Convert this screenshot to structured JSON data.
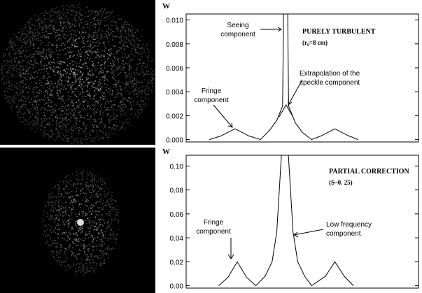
{
  "chart_data": [
    {
      "type": "line",
      "y_label": "W",
      "title": "PURELY TURBULENT",
      "subtitle": "(r₀=8 cm)",
      "annotations": [
        [
          "Seeing",
          "component"
        ],
        [
          "Extrapolation of the",
          "speckle component"
        ],
        [
          "Fringe",
          "component"
        ]
      ],
      "xlim": [
        0,
        1
      ],
      "ylim": [
        -0.0002,
        0.0105
      ],
      "yticks": [
        {
          "value": 0,
          "label": "0.000"
        },
        {
          "value": 0.002,
          "label": "0.002"
        },
        {
          "value": 0.004,
          "label": "0.004"
        },
        {
          "value": 0.006,
          "label": "0.006"
        },
        {
          "value": 0.008,
          "label": "0.008"
        },
        {
          "value": 0.01,
          "label": "0.010"
        }
      ],
      "series": [
        {
          "color": "#000000",
          "x": [
            0.1,
            0.15,
            0.19,
            0.21,
            0.23,
            0.27,
            0.32,
            0.36,
            0.39,
            0.415,
            0.419,
            0.437,
            0.441,
            0.47,
            0.5,
            0.54,
            0.58,
            0.61,
            0.64,
            0.67,
            0.7,
            0.74
          ],
          "values": [
            0,
            0.0003,
            0.0007,
            0.0009,
            0.0007,
            0.0003,
            0,
            0.0008,
            0.0016,
            0.0028,
            0.0105,
            0.0105,
            0.0028,
            0.0014,
            0.0006,
            0,
            0.0003,
            0.0006,
            0.0009,
            0.0006,
            0.0003,
            0
          ]
        },
        {
          "color": "#000000",
          "x": [
            0.4,
            0.43,
            0.46
          ],
          "values": [
            0.0019,
            0.0029,
            0.0019
          ]
        }
      ]
    },
    {
      "type": "line",
      "y_label": "W",
      "title": "PARTIAL CORRECTION",
      "subtitle": "(S~0. 25)",
      "annotations": [
        [
          "Fringe",
          "component"
        ],
        [
          "Low frequency",
          "component"
        ]
      ],
      "xlim": [
        0,
        1
      ],
      "ylim": [
        -0.002,
        0.109
      ],
      "yticks": [
        {
          "value": 0,
          "label": "0.00"
        },
        {
          "value": 0.02,
          "label": "0.02"
        },
        {
          "value": 0.04,
          "label": "0.04"
        },
        {
          "value": 0.06,
          "label": "0.06"
        },
        {
          "value": 0.08,
          "label": "0.08"
        },
        {
          "value": 0.1,
          "label": "0.10"
        }
      ],
      "series": [
        {
          "color": "#000000",
          "x": [
            0.14,
            0.18,
            0.22,
            0.26,
            0.3,
            0.34,
            0.37,
            0.39,
            0.41,
            0.44,
            0.46,
            0.48,
            0.51,
            0.54,
            0.57,
            0.6,
            0.64,
            0.68,
            0.72
          ],
          "values": [
            0,
            0.007,
            0.02,
            0.007,
            0,
            0.008,
            0.02,
            0.045,
            0.109,
            0.109,
            0.045,
            0.02,
            0.008,
            0,
            0.004,
            0.008,
            0.02,
            0.008,
            0
          ]
        }
      ]
    }
  ]
}
